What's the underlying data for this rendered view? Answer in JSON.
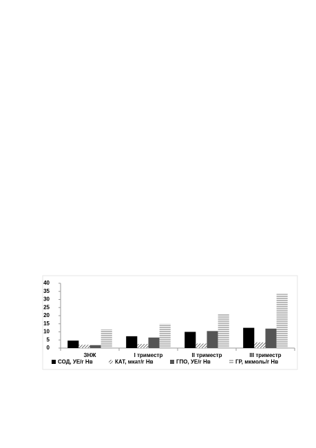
{
  "chart_data": {
    "type": "bar",
    "categories": [
      "ЗНЖ",
      "I триместр",
      "II триместр",
      "III триместр"
    ],
    "series": [
      {
        "name": "СОД, УЕ/г Нв",
        "color": "#000000",
        "pattern": "solid",
        "values": [
          4.6,
          7.3,
          10,
          12.5
        ]
      },
      {
        "name": "КАТ, мкат/г Нв",
        "color": "#333333",
        "pattern": "hatch",
        "values": [
          2,
          2.5,
          2.8,
          3.5
        ]
      },
      {
        "name": "ГПО, УЕ/г Нв",
        "color": "#555555",
        "pattern": "solid",
        "values": [
          1.8,
          6.5,
          10.5,
          12
        ]
      },
      {
        "name": "ГР, мкмоль/г Нв",
        "color": "#b8b8b8",
        "pattern": "stripes",
        "values": [
          11.5,
          15,
          21,
          33.5
        ]
      }
    ],
    "ylim": [
      0,
      40
    ],
    "yticks": [
      0,
      5,
      10,
      15,
      20,
      25,
      30,
      35,
      40
    ],
    "grid": false
  }
}
